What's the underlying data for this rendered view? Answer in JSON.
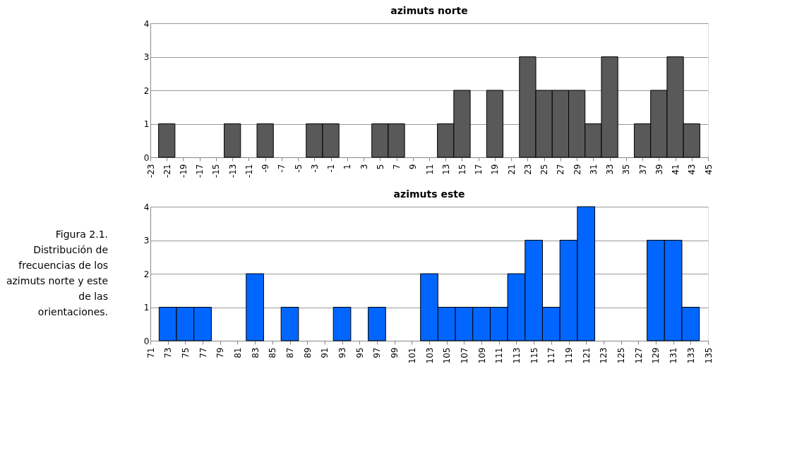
{
  "chart_data": [
    {
      "type": "histogram",
      "title": "azimuts norte",
      "color": "#595959",
      "bins": [
        -22,
        -20,
        -18,
        -16,
        -14,
        -12,
        -10,
        -8,
        -6,
        -4,
        -2,
        0,
        2,
        4,
        6,
        8,
        10,
        12,
        14,
        16,
        18,
        20,
        22,
        24,
        26,
        28,
        30,
        32,
        34,
        36,
        38,
        40,
        42,
        44
      ],
      "values": [
        1,
        0,
        0,
        0,
        1,
        0,
        1,
        0,
        0,
        1,
        1,
        0,
        0,
        1,
        1,
        0,
        0,
        1,
        2,
        0,
        2,
        0,
        3,
        2,
        2,
        2,
        1,
        3,
        0,
        1,
        2,
        3,
        1
      ],
      "xlim": [
        -23,
        45
      ],
      "xticks": [
        -23,
        -21,
        -19,
        -17,
        -15,
        -13,
        -11,
        -9,
        -7,
        -5,
        -3,
        -1,
        1,
        3,
        5,
        7,
        9,
        11,
        13,
        15,
        17,
        19,
        21,
        23,
        25,
        27,
        29,
        31,
        33,
        35,
        37,
        39,
        41,
        43,
        45
      ],
      "ylim": [
        0,
        4
      ],
      "yticks": [
        0,
        1,
        2,
        3,
        4
      ],
      "grid": "y"
    },
    {
      "type": "histogram",
      "title": "azimuts este",
      "color": "#0066ff",
      "bins": [
        72,
        74,
        76,
        78,
        80,
        82,
        84,
        86,
        88,
        90,
        92,
        94,
        96,
        98,
        100,
        102,
        104,
        106,
        108,
        110,
        112,
        114,
        116,
        118,
        120,
        122,
        124,
        126,
        128,
        130,
        132,
        134
      ],
      "values": [
        1,
        1,
        1,
        0,
        0,
        2,
        0,
        1,
        0,
        0,
        1,
        0,
        1,
        0,
        0,
        2,
        1,
        1,
        1,
        1,
        2,
        3,
        1,
        3,
        4,
        0,
        0,
        0,
        3,
        3,
        1
      ],
      "xlim": [
        71,
        135
      ],
      "xticks": [
        71,
        73,
        75,
        77,
        79,
        81,
        83,
        85,
        87,
        89,
        91,
        93,
        95,
        97,
        99,
        101,
        103,
        105,
        107,
        109,
        111,
        113,
        115,
        117,
        119,
        121,
        123,
        125,
        127,
        129,
        131,
        133,
        135
      ],
      "ylim": [
        0,
        4
      ],
      "yticks": [
        0,
        1,
        2,
        3,
        4
      ],
      "grid": "y",
      "annotations": [
        "Figura 2.1.\nDistribución de\nfrecuencias de los\nazimuts norte y este\nde las\norientaciones."
      ]
    }
  ]
}
